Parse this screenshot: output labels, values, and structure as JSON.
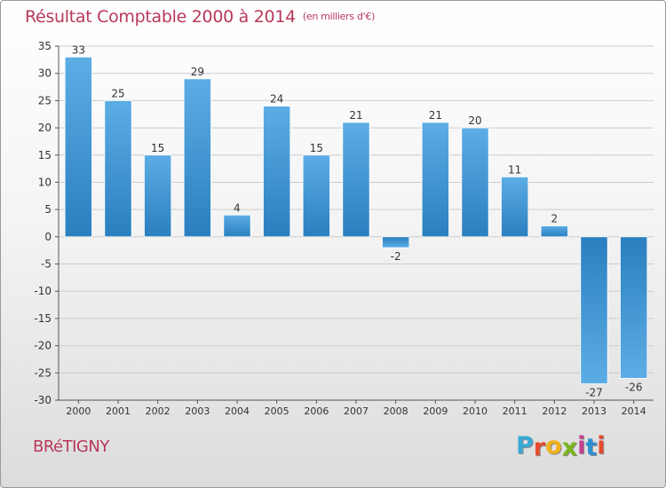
{
  "header": {
    "title": "Résultat Comptable 2000 à 2014",
    "subtitle": "(en milliers d'€)"
  },
  "footer": {
    "city": "BRéTIGNY",
    "brand_letters": [
      "P",
      "r",
      "o",
      "x",
      "i",
      "t",
      "i"
    ],
    "brand_colors": [
      "#3aa9d6",
      "#e84a2d",
      "#f2b21b",
      "#7ab51d",
      "#c43f8f",
      "#2d8fd0",
      "#e84a2d"
    ]
  },
  "colors": {
    "bar_light": "#5dade5",
    "bar_dark": "#2a7fbf",
    "axis": "#555555",
    "grid": "#cccccc",
    "text": "#333333"
  },
  "chart_data": {
    "type": "bar",
    "title": "Résultat Comptable 2000 à 2014",
    "subtitle": "(en milliers d'€)",
    "xlabel": "",
    "ylabel": "",
    "categories": [
      "2000",
      "2001",
      "2002",
      "2003",
      "2004",
      "2005",
      "2006",
      "2007",
      "2008",
      "2009",
      "2010",
      "2011",
      "2012",
      "2013",
      "2014"
    ],
    "values": [
      33,
      25,
      15,
      29,
      4,
      24,
      15,
      21,
      -2,
      21,
      20,
      11,
      2,
      -27,
      -26
    ],
    "value_labels": [
      "33",
      "25",
      "15",
      "29",
      "4",
      "24",
      "15",
      "21",
      "-2",
      "21",
      "20",
      "11",
      "2",
      "-27",
      "-26"
    ],
    "ylim": [
      -30,
      35
    ],
    "yticks": [
      35,
      30,
      25,
      20,
      15,
      10,
      5,
      0,
      -5,
      -10,
      -15,
      -20,
      -25,
      -30
    ],
    "ytick_labels": [
      "35",
      "30",
      "25",
      "20",
      "15",
      "10",
      "5",
      "0",
      "-5",
      "-10",
      "-15",
      "-20",
      "-25",
      "-30"
    ],
    "grid": true,
    "legend": "none"
  }
}
